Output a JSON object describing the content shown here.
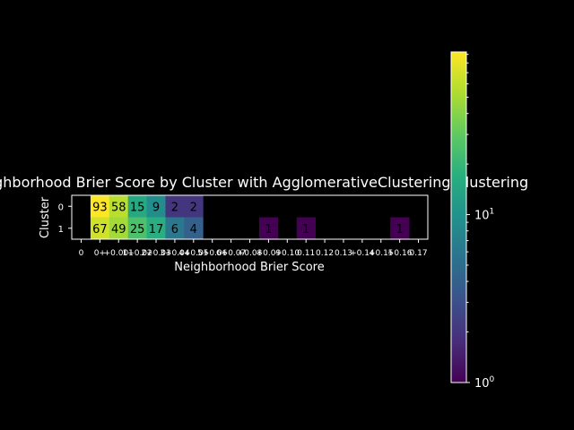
{
  "chart_data": {
    "type": "heatmap",
    "title": "Neighborhood Brier Score by Cluster with AgglomerativeClustering Clustering",
    "xlabel": "Neighborhood Brier Score",
    "ylabel": "Cluster",
    "x_categories": [
      "0",
      "0+",
      "+0.001",
      "1+0.02",
      "2+0.03",
      "3+0.04",
      "4+0.05",
      "5+0.06",
      "6+0.07",
      "+0.08",
      "+0.09",
      "+0.10",
      "0.11",
      "0.12",
      "0.13",
      "+0.14",
      "+0.15",
      "+0.16",
      "0.17"
    ],
    "x_tick_labels_visible": [
      "0",
      "0+",
      "+0.001",
      "1+0.02",
      "2+0.03",
      "3+0.04",
      "4+0.05",
      "5+0.06",
      "6+0.07",
      "+0.08",
      "+0.09",
      "+0.10",
      "0.11",
      "0.12",
      "0.13",
      "+0.14",
      "+0.15",
      "+0.16",
      "0.17"
    ],
    "y_categories": [
      "0",
      "1"
    ],
    "values": [
      [
        null,
        93,
        58,
        15,
        9,
        2,
        2,
        null,
        null,
        null,
        null,
        null,
        null,
        null,
        null,
        null,
        null,
        null,
        null
      ],
      [
        null,
        67,
        49,
        25,
        17,
        6,
        4,
        null,
        null,
        null,
        1,
        null,
        1,
        null,
        null,
        null,
        null,
        1,
        null
      ]
    ],
    "colormap": "viridis",
    "color_scale": "log",
    "colorbar": {
      "min": 1,
      "max": 93,
      "ticks": [
        {
          "base": "10",
          "exp": "0",
          "value": 1
        },
        {
          "base": "10",
          "exp": "1",
          "value": 10
        }
      ]
    },
    "legend": "none",
    "grid": false
  }
}
